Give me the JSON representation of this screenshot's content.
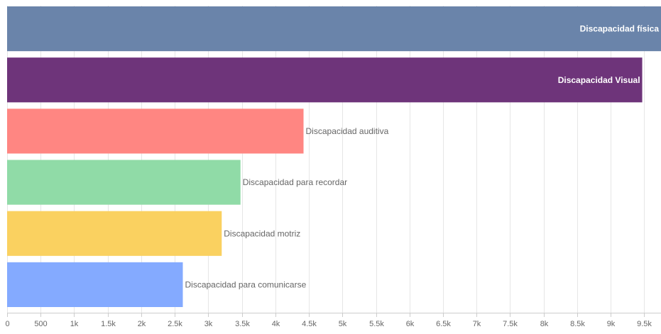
{
  "chart_data": {
    "type": "bar",
    "orientation": "horizontal",
    "categories": [
      "Discapacidad física",
      "Discapacidad Visual",
      "Discapacidad auditiva",
      "Discapacidad para recordar",
      "Discapacidad motriz",
      "Discapacidad para comunicarse"
    ],
    "values": [
      9750,
      9470,
      4420,
      3480,
      3200,
      2620
    ],
    "colors": [
      "#6a84aa",
      "#6e347a",
      "#ff8682",
      "#90dba7",
      "#fad160",
      "#84aaff"
    ],
    "label_colors": [
      "#ffffff",
      "#ffffff",
      "#666666",
      "#666666",
      "#666666",
      "#666666"
    ],
    "label_inside": [
      true,
      true,
      false,
      false,
      false,
      false
    ],
    "xlim": [
      0,
      9750
    ],
    "x_ticks": [
      0,
      500,
      1000,
      1500,
      2000,
      2500,
      3000,
      3500,
      4000,
      4500,
      5000,
      5500,
      6000,
      6500,
      7000,
      7500,
      8000,
      8500,
      9000,
      9500
    ],
    "x_tick_labels": [
      "0",
      "500",
      "1k",
      "1.5k",
      "2k",
      "2.5k",
      "3k",
      "3.5k",
      "4k",
      "4.5k",
      "5k",
      "5.5k",
      "6k",
      "6.5k",
      "7k",
      "7.5k",
      "8k",
      "8.5k",
      "9k",
      "9.5k"
    ],
    "grid": true,
    "title": "",
    "xlabel": "",
    "ylabel": ""
  }
}
